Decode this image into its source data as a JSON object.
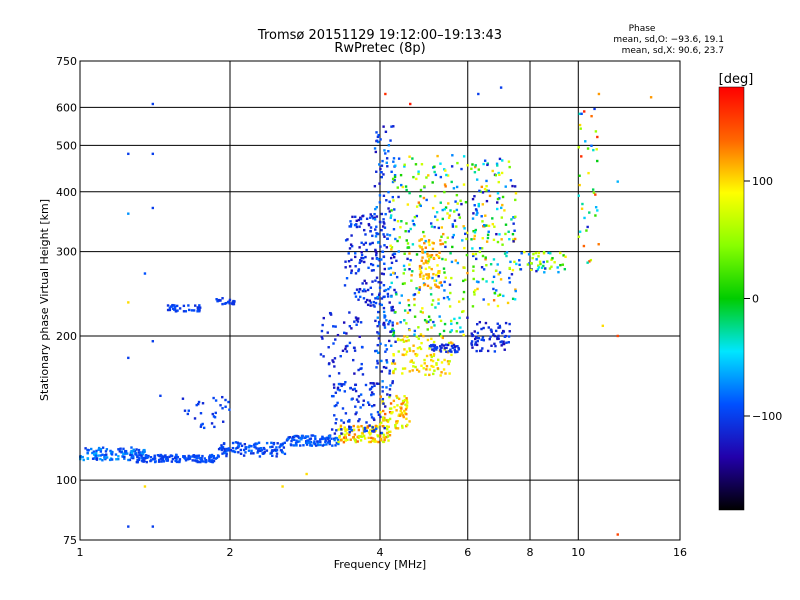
{
  "chart_data": {
    "type": "scatter",
    "title": "Tromsø 20151129 19:12:00–19:13:43",
    "subtitle": "RwPretec (8p)",
    "xlabel": "Frequency [MHz]",
    "ylabel": "Stationary phase Virtual Height [km]",
    "x_scale": "log",
    "y_scale": "log",
    "xlim": [
      1,
      16
    ],
    "ylim": [
      75,
      750
    ],
    "x_ticks": [
      1,
      2,
      4,
      6,
      8,
      10,
      16
    ],
    "x_tick_labels": [
      "1",
      "2",
      "4",
      "6",
      "8",
      "10",
      "16"
    ],
    "y_ticks": [
      75,
      100,
      200,
      300,
      400,
      500,
      600,
      750
    ],
    "y_tick_labels": [
      "75",
      "100",
      "200",
      "300",
      "400",
      "500",
      "600",
      "750"
    ],
    "grid": true,
    "phase_info": {
      "title": "Phase",
      "line_o": "mean, sd,O: −93.6, 19.1",
      "line_x": "mean, sd,X:  90.6, 23.7"
    },
    "colorbar": {
      "label": "[deg]",
      "ticks": [
        100,
        0,
        -100
      ],
      "tick_labels": [
        "100",
        "0",
        "−100"
      ],
      "range": [
        -180,
        180
      ],
      "colormap": "rainbow"
    },
    "clusters": [
      {
        "x0": 1.0,
        "x1": 1.35,
        "y0": 110,
        "y1": 117,
        "phase0": -110,
        "phase1": -60,
        "n": 120
      },
      {
        "x0": 1.3,
        "x1": 1.9,
        "y0": 109,
        "y1": 113,
        "phase0": -105,
        "phase1": -85,
        "n": 150
      },
      {
        "x0": 1.9,
        "x1": 2.6,
        "y0": 112,
        "y1": 120,
        "phase0": -110,
        "phase1": -80,
        "n": 110
      },
      {
        "x0": 2.6,
        "x1": 3.3,
        "y0": 118,
        "y1": 124,
        "phase0": -110,
        "phase1": -75,
        "n": 110
      },
      {
        "x0": 3.3,
        "x1": 4.2,
        "y0": 120,
        "y1": 130,
        "phase0": 60,
        "phase1": 140,
        "n": 120
      },
      {
        "x0": 4.0,
        "x1": 4.6,
        "y0": 128,
        "y1": 150,
        "phase0": 60,
        "phase1": 140,
        "n": 80
      },
      {
        "x0": 3.2,
        "x1": 4.1,
        "y0": 125,
        "y1": 160,
        "phase0": -125,
        "phase1": -85,
        "n": 100
      },
      {
        "x0": 3.0,
        "x1": 3.7,
        "y0": 160,
        "y1": 225,
        "phase0": -130,
        "phase1": -90,
        "n": 60
      },
      {
        "x0": 3.4,
        "x1": 4.1,
        "y0": 230,
        "y1": 360,
        "phase0": -130,
        "phase1": -85,
        "n": 140
      },
      {
        "x0": 3.9,
        "x1": 4.3,
        "y0": 150,
        "y1": 550,
        "phase0": -130,
        "phase1": -70,
        "n": 170
      },
      {
        "x0": 4.2,
        "x1": 5.6,
        "y0": 165,
        "y1": 200,
        "phase0": 60,
        "phase1": 120,
        "n": 100
      },
      {
        "x0": 4.2,
        "x1": 6.0,
        "y0": 200,
        "y1": 480,
        "phase0": -125,
        "phase1": 130,
        "n": 280
      },
      {
        "x0": 4.8,
        "x1": 5.3,
        "y0": 250,
        "y1": 320,
        "phase0": 90,
        "phase1": 130,
        "n": 70
      },
      {
        "x0": 5.0,
        "x1": 5.8,
        "y0": 185,
        "y1": 192,
        "phase0": -125,
        "phase1": -95,
        "n": 40
      },
      {
        "x0": 6.1,
        "x1": 7.3,
        "y0": 185,
        "y1": 215,
        "phase0": -130,
        "phase1": -95,
        "n": 70
      },
      {
        "x0": 6.1,
        "x1": 7.5,
        "y0": 230,
        "y1": 470,
        "phase0": -130,
        "phase1": 130,
        "n": 170
      },
      {
        "x0": 7.5,
        "x1": 9.5,
        "y0": 270,
        "y1": 300,
        "phase0": -120,
        "phase1": 100,
        "n": 50
      },
      {
        "x0": 10.0,
        "x1": 11.0,
        "y0": 280,
        "y1": 600,
        "phase0": -120,
        "phase1": 170,
        "n": 40
      },
      {
        "x0": 1.5,
        "x1": 1.75,
        "y0": 225,
        "y1": 232,
        "phase0": -110,
        "phase1": -90,
        "n": 35
      },
      {
        "x0": 1.85,
        "x1": 2.05,
        "y0": 233,
        "y1": 240,
        "phase0": -110,
        "phase1": -90,
        "n": 25
      },
      {
        "x0": 1.6,
        "x1": 2.0,
        "y0": 128,
        "y1": 150,
        "phase0": -115,
        "phase1": -90,
        "n": 30
      }
    ],
    "points": [
      {
        "x": 1.4,
        "y": 610,
        "phase": -100
      },
      {
        "x": 1.25,
        "y": 480,
        "phase": -100
      },
      {
        "x": 1.4,
        "y": 480,
        "phase": -100
      },
      {
        "x": 1.4,
        "y": 370,
        "phase": -100
      },
      {
        "x": 1.25,
        "y": 360,
        "phase": -70
      },
      {
        "x": 1.35,
        "y": 270,
        "phase": -90
      },
      {
        "x": 1.25,
        "y": 235,
        "phase": 100
      },
      {
        "x": 1.4,
        "y": 195,
        "phase": -100
      },
      {
        "x": 1.25,
        "y": 180,
        "phase": -100
      },
      {
        "x": 1.45,
        "y": 150,
        "phase": -100
      },
      {
        "x": 1.25,
        "y": 80,
        "phase": -100
      },
      {
        "x": 1.4,
        "y": 80,
        "phase": -100
      },
      {
        "x": 1.35,
        "y": 97,
        "phase": 100
      },
      {
        "x": 2.55,
        "y": 97,
        "phase": 100
      },
      {
        "x": 2.85,
        "y": 103,
        "phase": 100
      },
      {
        "x": 4.1,
        "y": 640,
        "phase": 160
      },
      {
        "x": 4.6,
        "y": 610,
        "phase": 170
      },
      {
        "x": 7.0,
        "y": 660,
        "phase": -100
      },
      {
        "x": 6.3,
        "y": 640,
        "phase": -100
      },
      {
        "x": 11.0,
        "y": 640,
        "phase": 120
      },
      {
        "x": 14.0,
        "y": 630,
        "phase": 120
      },
      {
        "x": 12.0,
        "y": 420,
        "phase": -60
      },
      {
        "x": 12.0,
        "y": 200,
        "phase": 150
      },
      {
        "x": 12.0,
        "y": 77,
        "phase": 150
      },
      {
        "x": 11.2,
        "y": 210,
        "phase": 100
      }
    ]
  }
}
